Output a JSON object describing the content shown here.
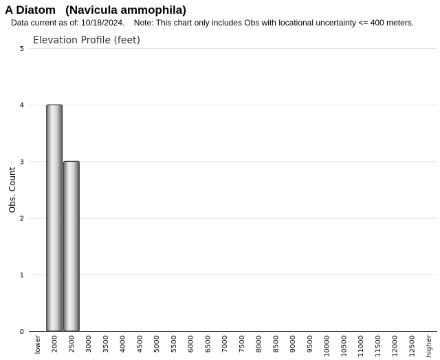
{
  "header": {
    "title": "A Diatom   (Navicula ammophila)",
    "subtitle": "Data current as of: 10/18/2024.    Note: This chart only includes Obs with locational uncertainty <= 400 meters."
  },
  "chart_data": {
    "type": "bar",
    "title": "Elevation Profile (feet)",
    "xlabel": "",
    "ylabel": "Obs. Count",
    "ylim": [
      0,
      5
    ],
    "yticks": [
      "0",
      "1",
      "2",
      "3",
      "4",
      "5"
    ],
    "grid": true,
    "categories": [
      "lower",
      "2000",
      "2500",
      "3000",
      "3500",
      "4000",
      "4500",
      "5000",
      "5500",
      "6000",
      "6500",
      "7000",
      "7500",
      "8000",
      "8500",
      "9000",
      "9500",
      "10000",
      "10500",
      "11000",
      "11500",
      "12000",
      "12500",
      "higher"
    ],
    "values": [
      0,
      4,
      3,
      0,
      0,
      0,
      0,
      0,
      0,
      0,
      0,
      0,
      0,
      0,
      0,
      0,
      0,
      0,
      0,
      0,
      0,
      0,
      0,
      0
    ],
    "bar_color": "#9a9a9a"
  }
}
